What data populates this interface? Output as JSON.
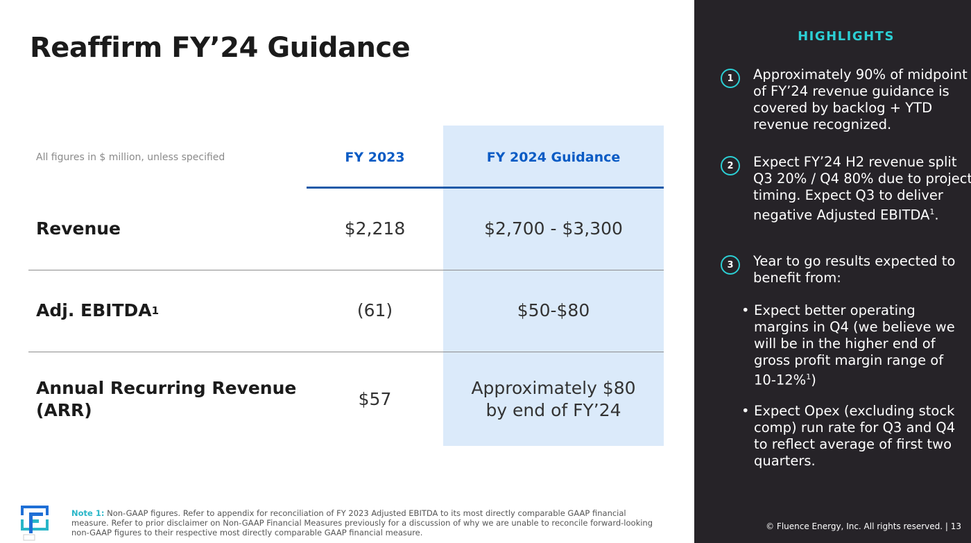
{
  "slide": {
    "title": "Reaffirm FY’24 Guidance"
  },
  "table": {
    "units_note": "All figures in $ million, unless specified",
    "col_fy2023": "FY 2023",
    "col_fy2024": "FY 2024 Guidance",
    "rows": [
      {
        "label": "Revenue",
        "superscript": "",
        "fy2023": "$2,218",
        "fy2024": "$2,700 - $3,300"
      },
      {
        "label": "Adj. EBITDA",
        "superscript": "1",
        "fy2023": "(61)",
        "fy2024": "$50-$80"
      },
      {
        "label_line1": "Annual Recurring Revenue",
        "label_line2": "(ARR)",
        "fy2023": "$57",
        "fy2024_line1": "Approximately $80",
        "fy2024_line2": "by end of FY’24"
      }
    ]
  },
  "footnote": {
    "label": "Note 1:",
    "text": " Non-GAAP figures. Refer to appendix for reconciliation of FY 2023 Adjusted EBITDA to its most directly comparable GAAP financial measure. Refer to prior disclaimer on Non-GAAP Financial Measures previously for a discussion of why we are unable to reconcile forward-looking non-GAAP figures to their respective most directly comparable GAAP financial measure."
  },
  "highlights": {
    "title": "HIGHLIGHTS",
    "items": [
      {
        "number": "1",
        "text": "Approximately 90% of midpoint of FY’24 revenue guidance is covered by backlog + YTD revenue recognized."
      },
      {
        "number": "2",
        "text": "Expect FY’24 H2 revenue split Q3 20% / Q4 80% due to project timing. Expect Q3 to deliver negative Adjusted EBITDA",
        "superscript": "1",
        "suffix": "."
      },
      {
        "number": "3",
        "text": "Year to go results expected to benefit from:"
      }
    ],
    "bullets": [
      {
        "text": "Expect better operating margins in Q4  (we believe we will be in the higher end of gross profit margin range of 10-12%",
        "superscript": "1",
        "suffix": ")"
      },
      {
        "text": "Expect Opex (excluding stock comp) run rate for Q3 and Q4 to reflect average of first two quarters."
      }
    ],
    "bullet_char": "•"
  },
  "copyright": "© Fluence Energy, Inc. All rights reserved.  |  13",
  "colors": {
    "accent_teal": "#2ccfd4",
    "header_blue": "#0a5bc4",
    "guidance_fill": "#dbeafa",
    "panel_bg": "#262328"
  }
}
